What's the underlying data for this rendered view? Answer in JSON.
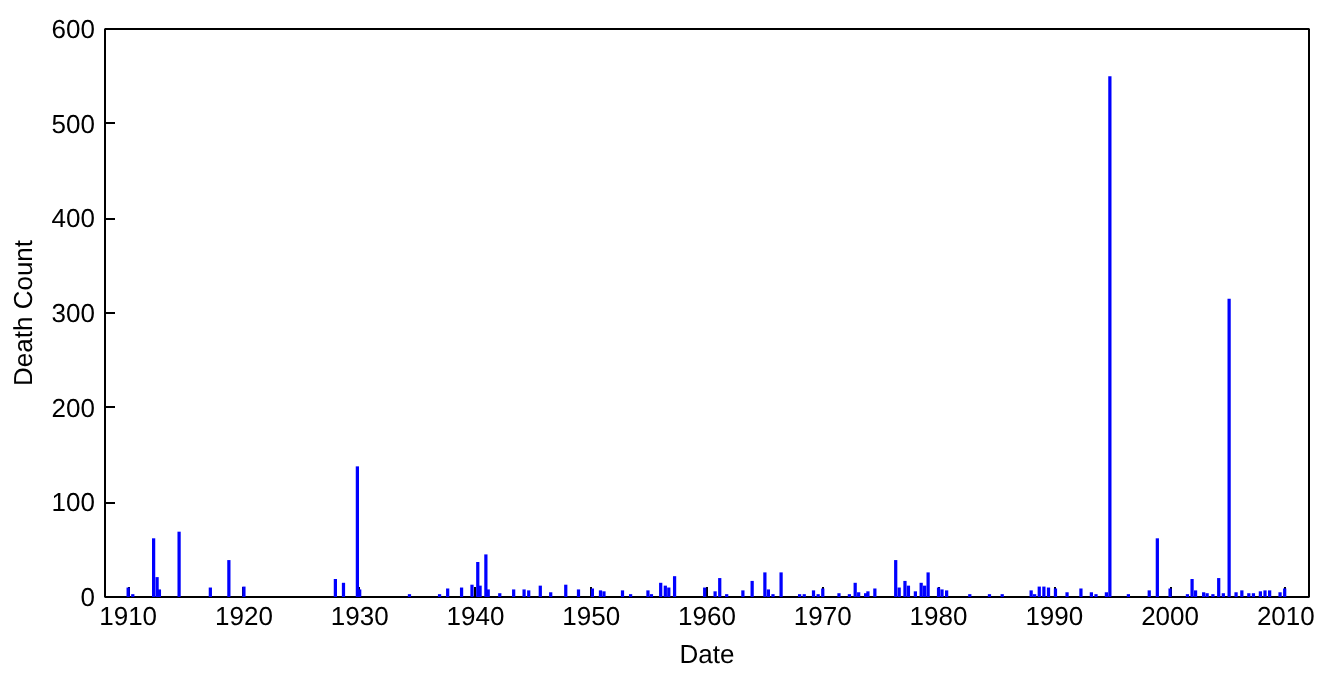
{
  "chart_data": {
    "type": "bar",
    "xlabel": "Date",
    "ylabel": "Death Count",
    "color": "#0000ff",
    "x": [
      1910.0,
      1910.4,
      1912.2,
      1912.5,
      1912.7,
      1914.4,
      1917.1,
      1918.7,
      1920.0,
      1927.9,
      1928.6,
      1929.8,
      1930.0,
      1934.3,
      1936.9,
      1937.6,
      1938.8,
      1939.7,
      1940.2,
      1940.4,
      1940.9,
      1941.1,
      1942.1,
      1943.3,
      1944.2,
      1944.6,
      1945.6,
      1946.5,
      1947.8,
      1948.9,
      1950.1,
      1950.8,
      1951.1,
      1952.7,
      1953.4,
      1954.9,
      1955.2,
      1956.0,
      1956.4,
      1956.7,
      1957.2,
      1959.8,
      1960.7,
      1961.1,
      1961.7,
      1963.1,
      1963.9,
      1965.0,
      1965.3,
      1965.7,
      1966.4,
      1968.0,
      1968.4,
      1969.2,
      1969.6,
      1970.0,
      1971.4,
      1972.3,
      1972.8,
      1973.1,
      1973.7,
      1973.9,
      1974.5,
      1976.3,
      1976.6,
      1977.1,
      1977.4,
      1978.0,
      1978.5,
      1978.8,
      1979.1,
      1980.0,
      1980.3,
      1980.7,
      1982.7,
      1984.4,
      1985.5,
      1988.0,
      1988.3,
      1988.7,
      1989.1,
      1989.5,
      1990.1,
      1991.1,
      1992.3,
      1993.2,
      1993.6,
      1994.5,
      1994.8,
      1996.4,
      1998.2,
      1998.9,
      2000.0,
      2001.5,
      2001.9,
      2002.2,
      2002.9,
      2003.2,
      2003.7,
      2004.2,
      2004.6,
      2005.1,
      2005.7,
      2006.2,
      2006.8,
      2007.2,
      2007.8,
      2008.2,
      2008.6,
      2009.5,
      2009.9
    ],
    "values": [
      10,
      3,
      62,
      21,
      8,
      69,
      10,
      39,
      11,
      19,
      15,
      138,
      8,
      3,
      3,
      9,
      10,
      13,
      37,
      12,
      45,
      8,
      4,
      8,
      8,
      7,
      12,
      5,
      13,
      8,
      9,
      7,
      6,
      7,
      3,
      7,
      3,
      15,
      12,
      10,
      22,
      10,
      6,
      20,
      3,
      7,
      17,
      26,
      8,
      3,
      26,
      3,
      3,
      7,
      3,
      9,
      4,
      3,
      15,
      5,
      4,
      6,
      9,
      39,
      10,
      17,
      12,
      6,
      15,
      12,
      26,
      10,
      8,
      7,
      3,
      3,
      3,
      7,
      3,
      11,
      11,
      10,
      9,
      5,
      9,
      5,
      3,
      5,
      550,
      3,
      7,
      62,
      9,
      3,
      19,
      7,
      5,
      4,
      3,
      20,
      4,
      315,
      5,
      7,
      4,
      4,
      6,
      7,
      7,
      5,
      9
    ],
    "xlim": [
      1908,
      2012
    ],
    "xticks": [
      1910,
      1920,
      1930,
      1940,
      1950,
      1960,
      1970,
      1980,
      1990,
      2000,
      2010
    ],
    "ylim": [
      0,
      600
    ],
    "yticks": [
      0,
      100,
      200,
      300,
      400,
      500,
      600
    ],
    "grid": false
  }
}
